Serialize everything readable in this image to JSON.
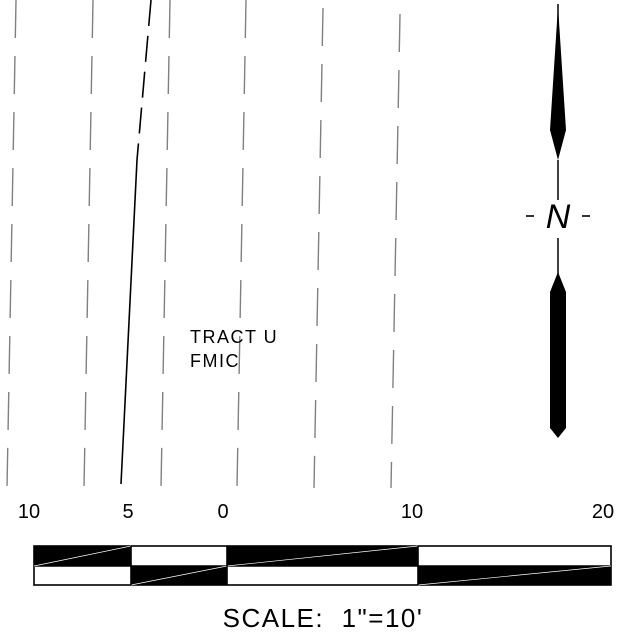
{
  "tract": {
    "line1": "TRACT U",
    "line2": "FMIC"
  },
  "north_arrow": {
    "letter": "N"
  },
  "scale_bar": {
    "tick_labels": [
      "10",
      "5",
      "0",
      "10",
      "20"
    ],
    "caption": "SCALE:  1\"=10'"
  },
  "colors": {
    "ink": "#000000",
    "dashed_line": "#808080",
    "paper": "#ffffff"
  }
}
